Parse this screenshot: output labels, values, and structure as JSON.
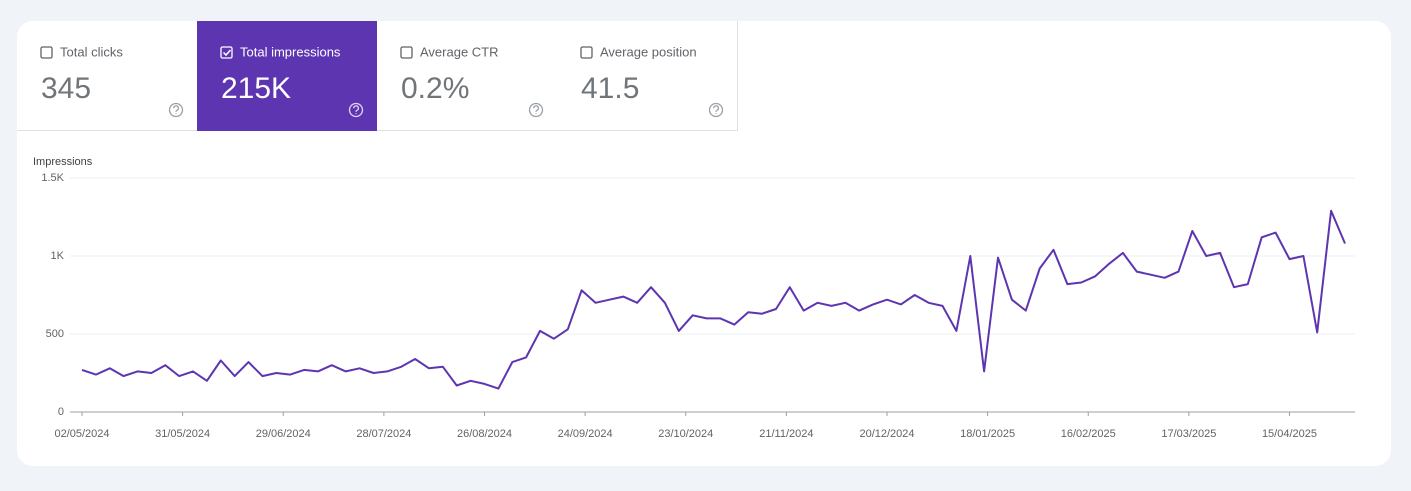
{
  "metrics": [
    {
      "label": "Total clicks",
      "value": "345",
      "checked": false
    },
    {
      "label": "Total impressions",
      "value": "215K",
      "checked": true
    },
    {
      "label": "Average CTR",
      "value": "0.2%",
      "checked": false
    },
    {
      "label": "Average position",
      "value": "41.5",
      "checked": false
    }
  ],
  "chart_data": {
    "type": "line",
    "y_label": "Impressions",
    "color": "#5e35b1",
    "grid": true,
    "ylim": [
      0,
      1500
    ],
    "yticks": [
      0,
      500,
      {
        "value": 1000,
        "label": "1K"
      },
      {
        "value": 1500,
        "label": "1.5K"
      }
    ],
    "xticks": [
      "02/05/2024",
      "31/05/2024",
      "29/06/2024",
      "28/07/2024",
      "26/08/2024",
      "24/09/2024",
      "23/10/2024",
      "21/11/2024",
      "20/12/2024",
      "18/01/2025",
      "16/02/2025",
      "17/03/2025",
      "15/04/2025"
    ],
    "x": [
      "02/05/2024",
      "06/05/2024",
      "10/05/2024",
      "14/05/2024",
      "18/05/2024",
      "22/05/2024",
      "26/05/2024",
      "30/05/2024",
      "03/06/2024",
      "07/06/2024",
      "11/06/2024",
      "15/06/2024",
      "19/06/2024",
      "23/06/2024",
      "27/06/2024",
      "01/07/2024",
      "05/07/2024",
      "09/07/2024",
      "13/07/2024",
      "17/07/2024",
      "21/07/2024",
      "25/07/2024",
      "29/07/2024",
      "02/08/2024",
      "06/08/2024",
      "10/08/2024",
      "14/08/2024",
      "18/08/2024",
      "22/08/2024",
      "26/08/2024",
      "30/08/2024",
      "03/09/2024",
      "07/09/2024",
      "11/09/2024",
      "15/09/2024",
      "19/09/2024",
      "23/09/2024",
      "27/09/2024",
      "01/10/2024",
      "05/10/2024",
      "09/10/2024",
      "13/10/2024",
      "17/10/2024",
      "21/10/2024",
      "25/10/2024",
      "29/10/2024",
      "02/11/2024",
      "06/11/2024",
      "10/11/2024",
      "14/11/2024",
      "18/11/2024",
      "22/11/2024",
      "26/11/2024",
      "30/11/2024",
      "04/12/2024",
      "08/12/2024",
      "12/12/2024",
      "16/12/2024",
      "20/12/2024",
      "24/12/2024",
      "28/12/2024",
      "01/01/2025",
      "05/01/2025",
      "09/01/2025",
      "13/01/2025",
      "17/01/2025",
      "21/01/2025",
      "25/01/2025",
      "29/01/2025",
      "02/02/2025",
      "06/02/2025",
      "10/02/2025",
      "14/02/2025",
      "18/02/2025",
      "22/02/2025",
      "26/02/2025",
      "02/03/2025",
      "06/03/2025",
      "10/03/2025",
      "14/03/2025",
      "18/03/2025",
      "22/03/2025",
      "26/03/2025",
      "30/03/2025",
      "03/04/2025",
      "07/04/2025",
      "11/04/2025",
      "15/04/2025",
      "19/04/2025",
      "23/04/2025",
      "27/04/2025",
      "01/05/2025"
    ],
    "values": [
      270,
      240,
      280,
      230,
      260,
      250,
      300,
      230,
      260,
      200,
      330,
      230,
      320,
      230,
      250,
      240,
      270,
      260,
      300,
      260,
      280,
      250,
      260,
      290,
      340,
      280,
      290,
      170,
      200,
      180,
      150,
      320,
      350,
      520,
      470,
      530,
      780,
      700,
      720,
      740,
      700,
      800,
      700,
      520,
      620,
      600,
      600,
      560,
      640,
      630,
      660,
      800,
      650,
      700,
      680,
      700,
      650,
      690,
      720,
      690,
      750,
      700,
      680,
      520,
      1000,
      260,
      990,
      720,
      650,
      920,
      1040,
      820,
      830,
      870,
      950,
      1020,
      900,
      880,
      860,
      900,
      1160,
      1000,
      1020,
      800,
      820,
      1120,
      1150,
      980,
      1000,
      510,
      1290,
      1080
    ]
  }
}
